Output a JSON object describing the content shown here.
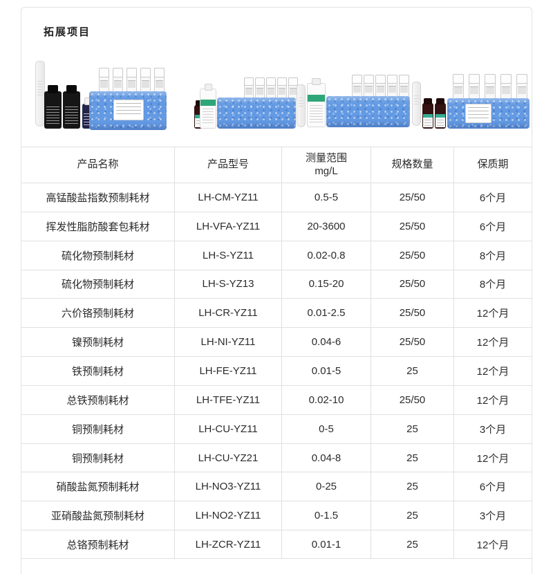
{
  "page": {
    "title": "拓展项目"
  },
  "colors": {
    "cooler_box_blue": "#639ae3",
    "green_label": "#2fa678",
    "teal_cap": "#34ad92",
    "table_border": "#e0e0e0",
    "text": "#2b2b2b"
  },
  "table": {
    "columns": [
      {
        "label": "产品名称"
      },
      {
        "label": "产品型号"
      },
      {
        "label": "测量范围",
        "sub": "mg/L"
      },
      {
        "label": "规格数量"
      },
      {
        "label": "保质期"
      }
    ],
    "rows": [
      {
        "name": "高锰酸盐指数预制耗材",
        "model": "LH-CM-YZ11",
        "range": "0.5-5",
        "qty": "25/50",
        "shelf": "6个月"
      },
      {
        "name": "挥发性脂肪酸套包耗材",
        "model": "LH-VFA-YZ11",
        "range": "20-3600",
        "qty": "25/50",
        "shelf": "6个月"
      },
      {
        "name": "硫化物预制耗材",
        "model": "LH-S-YZ11",
        "range": "0.02-0.8",
        "qty": "25/50",
        "shelf": "8个月"
      },
      {
        "name": "硫化物预制耗材",
        "model": "LH-S-YZ13",
        "range": "0.15-20",
        "qty": "25/50",
        "shelf": "8个月"
      },
      {
        "name": "六价铬预制耗材",
        "model": "LH-CR-YZ11",
        "range": "0.01-2.5",
        "qty": "25/50",
        "shelf": "12个月"
      },
      {
        "name": "镍预制耗材",
        "model": "LH-NI-YZ11",
        "range": "0.04-6",
        "qty": "25/50",
        "shelf": "12个月"
      },
      {
        "name": "铁预制耗材",
        "model": "LH-FE-YZ11",
        "range": "0.01-5",
        "qty": "25",
        "shelf": "12个月"
      },
      {
        "name": "总铁预制耗材",
        "model": "LH-TFE-YZ11",
        "range": "0.02-10",
        "qty": "25/50",
        "shelf": "12个月"
      },
      {
        "name": "铜预制耗材",
        "model": "LH-CU-YZ11",
        "range": "0-5",
        "qty": "25",
        "shelf": "3个月"
      },
      {
        "name": "铜预制耗材",
        "model": "LH-CU-YZ21",
        "range": "0.04-8",
        "qty": "25",
        "shelf": "12个月"
      },
      {
        "name": "硝酸盐氮预制耗材",
        "model": "LH-NO3-YZ11",
        "range": "0-25",
        "qty": "25",
        "shelf": "6个月"
      },
      {
        "name": "亚硝酸盐氮预制耗材",
        "model": "LH-NO2-YZ11",
        "range": "0-1.5",
        "qty": "25",
        "shelf": "3个月"
      },
      {
        "name": "总铬预制耗材",
        "model": "LH-ZCR-YZ11",
        "range": "0.01-1",
        "qty": "25",
        "shelf": "12个月"
      }
    ]
  }
}
